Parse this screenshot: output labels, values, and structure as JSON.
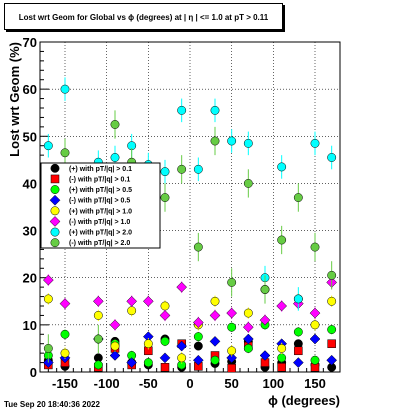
{
  "title": "Lost wrt Geom for Global vs ϕ (degrees) at |  η | <= 1.0 at pT > 0.11",
  "datestamp": "Tue Sep 20 18:40:36 2022",
  "chart_data": {
    "type": "scatter",
    "xlabel": "ϕ (degrees)",
    "ylabel": "Lost wrt Geom (%)",
    "xlim": [
      -180,
      180
    ],
    "ylim": [
      0,
      70
    ],
    "xticks": [
      -150,
      -100,
      -50,
      0,
      50,
      100,
      150
    ],
    "yticks": [
      0,
      10,
      20,
      30,
      40,
      50,
      60,
      70
    ],
    "grid": true,
    "legend_position": "middle-left",
    "x": [
      -170,
      -150,
      -110,
      -90,
      -70,
      -50,
      -30,
      -10,
      10,
      30,
      50,
      70,
      90,
      110,
      130,
      150,
      170
    ],
    "series": [
      {
        "name": "(+) with pT/|q| > 0.1",
        "color": "#000000",
        "shape": "circle",
        "err": 0.8,
        "values": [
          2.5,
          1.2,
          3.0,
          6.5,
          2.0,
          1.5,
          7.0,
          1.0,
          5.5,
          1.8,
          2.2,
          6.5,
          1.0,
          2.0,
          6.0,
          1.5,
          1.0
        ]
      },
      {
        "name": "(-) with pT/|q| > 0.1",
        "color": "#ff0000",
        "shape": "square",
        "err": 0.8,
        "values": [
          1.5,
          2.0,
          1.0,
          5.0,
          1.5,
          4.5,
          1.0,
          6.0,
          1.2,
          3.5,
          0.8,
          5.5,
          2.0,
          1.0,
          4.5,
          1.0,
          6.0
        ]
      },
      {
        "name": "(+) with pT/|q| > 0.5",
        "color": "#00ff00",
        "shape": "circle",
        "err": 1.0,
        "values": [
          3.5,
          8.0,
          1.5,
          6.0,
          3.5,
          2.0,
          6.5,
          1.5,
          7.5,
          2.5,
          9.5,
          5.0,
          10.0,
          3.0,
          8.5,
          2.5,
          9.0
        ]
      },
      {
        "name": "(-) with pT/|q| > 0.5",
        "color": "#0000ff",
        "shape": "diamond",
        "err": 1.0,
        "values": [
          2.0,
          3.0,
          7.0,
          3.5,
          2.0,
          7.5,
          3.0,
          5.5,
          2.5,
          6.5,
          3.0,
          7.0,
          3.5,
          6.0,
          2.0,
          7.0,
          2.5
        ]
      },
      {
        "name": "(+) with pT/|q| > 1.0",
        "color": "#ffff00",
        "shape": "circle",
        "err": 1.2,
        "values": [
          15.5,
          4.0,
          12.0,
          5.5,
          13.0,
          6.0,
          14.0,
          3.0,
          10.0,
          15.0,
          4.5,
          12.5,
          17.5,
          5.0,
          15.5,
          10.0,
          15.0
        ]
      },
      {
        "name": "(-) with pT/|q| > 1.0",
        "color": "#ff00ff",
        "shape": "diamond",
        "err": 1.2,
        "values": [
          19.5,
          14.5,
          15.0,
          10.0,
          15.0,
          15.0,
          12.0,
          18.0,
          10.5,
          12.0,
          12.5,
          9.5,
          11.0,
          14.0,
          14.5,
          12.5,
          19.0
        ]
      },
      {
        "name": "(+) with pT/|q| > 2.0",
        "color": "#00ffff",
        "shape": "circle",
        "err": 2.5,
        "values": [
          48.0,
          60.0,
          44.5,
          45.5,
          48.0,
          44.0,
          42.5,
          55.5,
          43.0,
          55.5,
          49.0,
          48.5,
          20.0,
          43.5,
          15.5,
          48.5,
          45.5
        ]
      },
      {
        "name": "(-) with pT/|q| > 2.0",
        "color": "#66cc44",
        "shape": "circle",
        "err": 3.0,
        "values": [
          5.0,
          46.5,
          7.0,
          52.5,
          44.5,
          40.5,
          37.0,
          43.0,
          26.5,
          49.0,
          19.0,
          40.0,
          17.5,
          28.0,
          37.0,
          26.5,
          20.5
        ]
      }
    ]
  }
}
